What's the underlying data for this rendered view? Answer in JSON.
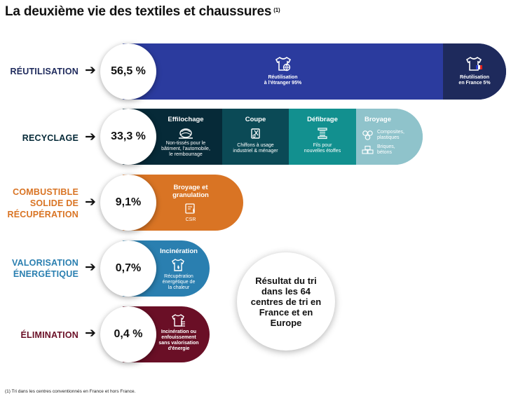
{
  "title": "La deuxième vie des textiles et chaussures",
  "title_note": "(1)",
  "result_label": "Résultat du tri dans les 64 centres de tri en France et en Europe",
  "footnote": "(1) Tri dans les centres conventionnés en France et hors France.",
  "colors": {
    "reuse": "#2b3b9e",
    "reuse_france": "#1e2a5c",
    "recycle": "#062a38",
    "coupe": "#0b4a56",
    "defibrage": "#12908f",
    "broyage": "#8fc3cb",
    "csr": "#d97424",
    "energy": "#2a7fb0",
    "elimination": "#6a0f26"
  },
  "chart_data": {
    "type": "bar",
    "title": "La deuxième vie des textiles et chaussures",
    "categories": [
      "RÉUTILISATION",
      "RECYCLAGE",
      "COMBUSTIBLE SOLIDE DE RÉCUPÉRATION",
      "VALORISATION ÉNERGÉTIQUE",
      "ÉLIMINATION"
    ],
    "values": [
      56.5,
      33.3,
      9.1,
      0.7,
      0.4
    ],
    "value_labels": [
      "56,5 %",
      "33,3 %",
      "9,1%",
      "0,7%",
      "0,4 %"
    ],
    "rows": [
      {
        "category": "RÉUTILISATION",
        "category_lines": [
          "RÉUTILISATION"
        ],
        "value_label": "56,5 %",
        "segments": [
          {
            "title": "",
            "desc_lines": [
              "Réutilisation",
              "à l'étranger 95%"
            ]
          },
          {
            "title": "",
            "desc_lines": [
              "Réutilisation",
              "en France 5%"
            ]
          }
        ]
      },
      {
        "category": "RECYCLAGE",
        "category_lines": [
          "RECYCLAGE"
        ],
        "value_label": "33,3 %",
        "segments": [
          {
            "title": "Effilochage",
            "desc_lines": [
              "Non-tissés pour le",
              "bâtiment, l'automobile,",
              "le rembourrage"
            ]
          },
          {
            "title": "Coupe",
            "desc_lines": [
              "Chiffons à usage",
              "industriel & ménager"
            ]
          },
          {
            "title": "Défibrage",
            "desc_lines": [
              "Fils pour",
              "nouvelles étoffes"
            ]
          },
          {
            "title": "Broyage",
            "desc_lines": [
              "Composites,",
              "plastiques",
              "Briques,",
              "bétons"
            ]
          }
        ]
      },
      {
        "category": "COMBUSTIBLE SOLIDE DE RÉCUPÉRATION",
        "category_lines": [
          "COMBUSTIBLE",
          "SOLIDE DE",
          "RÉCUPÉRATION"
        ],
        "value_label": "9,1%",
        "segments": [
          {
            "title": "Broyage et granulation",
            "desc_lines": [
              "CSR"
            ]
          }
        ]
      },
      {
        "category": "VALORISATION ÉNERGÉTIQUE",
        "category_lines": [
          "VALORISATION",
          "ÉNERGÉTIQUE"
        ],
        "value_label": "0,7%",
        "segments": [
          {
            "title": "Incinération",
            "desc_lines": [
              "Récupération",
              "énergétique de",
              "la chaleur"
            ]
          }
        ]
      },
      {
        "category": "ÉLIMINATION",
        "category_lines": [
          "ÉLIMINATION"
        ],
        "value_label": "0,4 %",
        "segments": [
          {
            "title": "",
            "desc_lines": [
              "Incinération ou",
              "enfouissement",
              "sans valorisation",
              "d'énergie"
            ]
          }
        ]
      }
    ]
  }
}
